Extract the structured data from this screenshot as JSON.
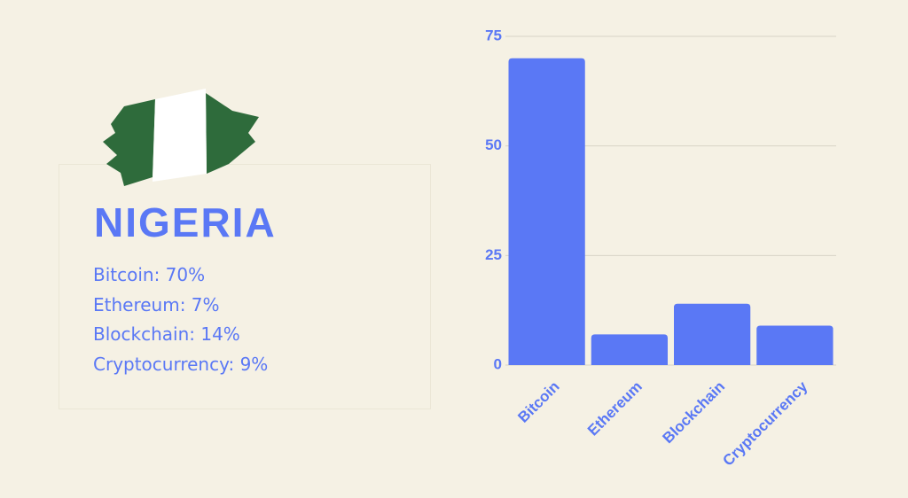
{
  "header": {
    "title": "NIGERIA"
  },
  "stats": [
    "Bitcoin: 70%",
    "Ethereum: 7%",
    "Blockchain: 14%",
    "Cryptocurrency: 9%"
  ],
  "chart_data": {
    "type": "bar",
    "categories": [
      "Bitcoin",
      "Ethereum",
      "Blockchain",
      "Cryptocurrency"
    ],
    "values": [
      70,
      7,
      14,
      9
    ],
    "color": "#5a78f5",
    "ylim": [
      0,
      75
    ],
    "yticks": [
      0,
      25,
      50,
      75
    ],
    "grid": true
  }
}
